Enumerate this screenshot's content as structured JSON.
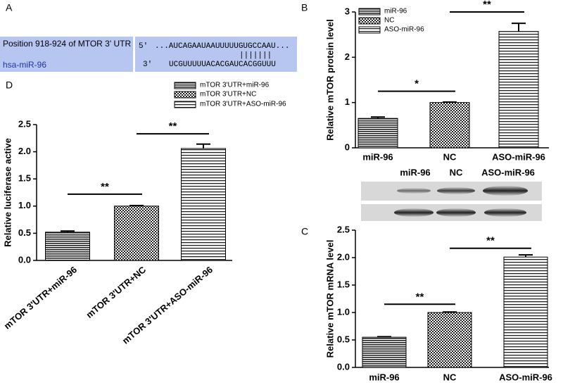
{
  "panels": [
    "A",
    "B",
    "C",
    "D"
  ],
  "sequence": {
    "target": "Position 918-924 of MTOR 3' UTR",
    "mirna": "hsa-miR-96",
    "end5": "5'",
    "end3": "3'",
    "target_seq": "...AUCAGAAUAAUUUUUGUGCCAAU...",
    "pairing": "|||||||",
    "mirna_seq": "UCGUUUUUACACGAUCACGGUUU"
  },
  "chart_data": [
    {
      "type": "bar",
      "ylabel": "Relative mTOR protein level",
      "categories": [
        "miR-96",
        "NC",
        "ASO-miR-96"
      ],
      "values": [
        0.65,
        1.0,
        2.57
      ],
      "errors": [
        0.03,
        0.01,
        0.18
      ],
      "ylim": [
        0,
        3
      ],
      "yticks": [
        0,
        1,
        2,
        3
      ],
      "legend": true,
      "annotations": [
        {
          "text": "*",
          "y": 1.25
        },
        {
          "text": "**",
          "y": 3.0
        }
      ]
    },
    {
      "type": "bar",
      "ylabel": "Relative mTOR mRNA level",
      "categories": [
        "miR-96",
        "NC",
        "ASO-miR-96"
      ],
      "values": [
        0.55,
        1.0,
        2.01
      ],
      "errors": [
        0.01,
        0.01,
        0.04
      ],
      "ylim": [
        0,
        2.5
      ],
      "yticks": [
        {
          "value": 0,
          "label": "0.0"
        },
        0.5,
        {
          "value": 1,
          "label": "1.0"
        },
        1.5,
        {
          "value": 2,
          "label": "2.0"
        },
        2.5
      ],
      "legend": false,
      "annotations": [
        {
          "text": "**",
          "y": 1.15
        },
        {
          "text": "**",
          "y": 2.17
        }
      ]
    },
    {
      "type": "bar",
      "ylabel": "Relative luciferase active",
      "categories": [
        "mTOR 3'UTR+miR-96",
        "mTOR 3'UTR+NC",
        "mTOR 3'UTR+ASO-miR-96"
      ],
      "values": [
        0.52,
        1.0,
        2.06
      ],
      "errors": [
        0.02,
        0.01,
        0.08
      ],
      "ylim": [
        0,
        2.5
      ],
      "yticks": [
        {
          "value": 0,
          "label": "0.0"
        },
        0.5,
        {
          "value": 1,
          "label": "1.0"
        },
        1.5,
        {
          "value": 2,
          "label": "2.0"
        },
        2.5
      ],
      "legend": true,
      "annotations": [
        {
          "text": "**",
          "y": 1.22
        },
        {
          "text": "**",
          "y": 2.33
        }
      ]
    }
  ]
}
